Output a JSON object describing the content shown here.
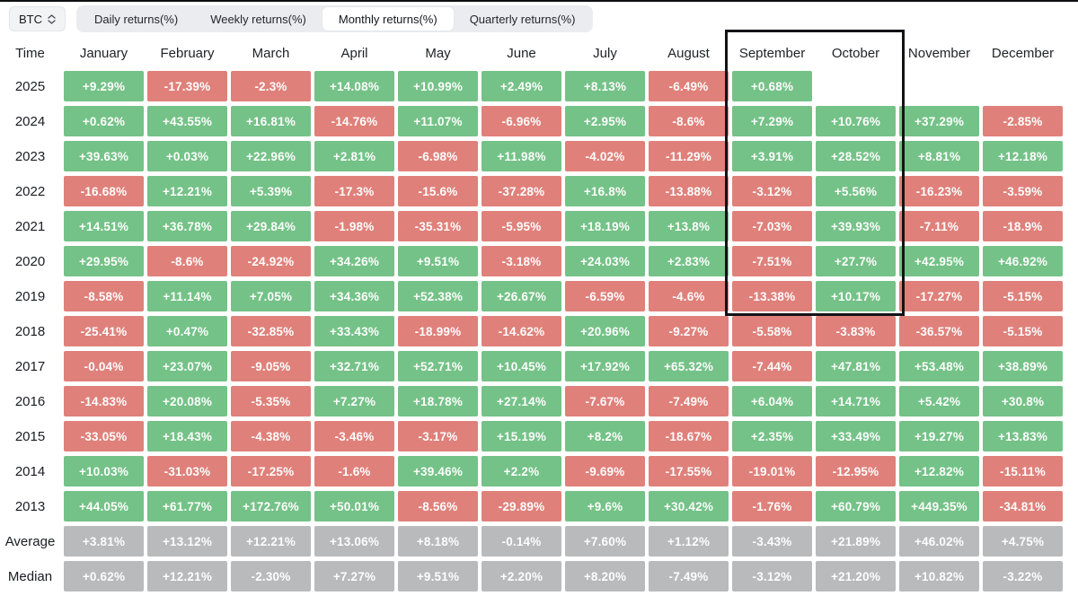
{
  "toolbar": {
    "coin": "BTC",
    "tabs": [
      {
        "label": "Daily returns(%)",
        "active": false
      },
      {
        "label": "Weekly returns(%)",
        "active": false
      },
      {
        "label": "Monthly returns(%)",
        "active": true
      },
      {
        "label": "Quarterly returns(%)",
        "active": false
      }
    ]
  },
  "table": {
    "time_label": "Time",
    "months": [
      "January",
      "February",
      "March",
      "April",
      "May",
      "June",
      "July",
      "August",
      "September",
      "October",
      "November",
      "December"
    ],
    "rows": [
      {
        "label": "2025",
        "type": "year",
        "values": [
          "+9.29%",
          "-17.39%",
          "-2.3%",
          "+14.08%",
          "+10.99%",
          "+2.49%",
          "+8.13%",
          "-6.49%",
          "+0.68%",
          "",
          "",
          ""
        ]
      },
      {
        "label": "2024",
        "type": "year",
        "values": [
          "+0.62%",
          "+43.55%",
          "+16.81%",
          "-14.76%",
          "+11.07%",
          "-6.96%",
          "+2.95%",
          "-8.6%",
          "+7.29%",
          "+10.76%",
          "+37.29%",
          "-2.85%"
        ]
      },
      {
        "label": "2023",
        "type": "year",
        "values": [
          "+39.63%",
          "+0.03%",
          "+22.96%",
          "+2.81%",
          "-6.98%",
          "+11.98%",
          "-4.02%",
          "-11.29%",
          "+3.91%",
          "+28.52%",
          "+8.81%",
          "+12.18%"
        ]
      },
      {
        "label": "2022",
        "type": "year",
        "values": [
          "-16.68%",
          "+12.21%",
          "+5.39%",
          "-17.3%",
          "-15.6%",
          "-37.28%",
          "+16.8%",
          "-13.88%",
          "-3.12%",
          "+5.56%",
          "-16.23%",
          "-3.59%"
        ]
      },
      {
        "label": "2021",
        "type": "year",
        "values": [
          "+14.51%",
          "+36.78%",
          "+29.84%",
          "-1.98%",
          "-35.31%",
          "-5.95%",
          "+18.19%",
          "+13.8%",
          "-7.03%",
          "+39.93%",
          "-7.11%",
          "-18.9%"
        ]
      },
      {
        "label": "2020",
        "type": "year",
        "values": [
          "+29.95%",
          "-8.6%",
          "-24.92%",
          "+34.26%",
          "+9.51%",
          "-3.18%",
          "+24.03%",
          "+2.83%",
          "-7.51%",
          "+27.7%",
          "+42.95%",
          "+46.92%"
        ]
      },
      {
        "label": "2019",
        "type": "year",
        "values": [
          "-8.58%",
          "+11.14%",
          "+7.05%",
          "+34.36%",
          "+52.38%",
          "+26.67%",
          "-6.59%",
          "-4.6%",
          "-13.38%",
          "+10.17%",
          "-17.27%",
          "-5.15%"
        ]
      },
      {
        "label": "2018",
        "type": "year",
        "values": [
          "-25.41%",
          "+0.47%",
          "-32.85%",
          "+33.43%",
          "-18.99%",
          "-14.62%",
          "+20.96%",
          "-9.27%",
          "-5.58%",
          "-3.83%",
          "-36.57%",
          "-5.15%"
        ]
      },
      {
        "label": "2017",
        "type": "year",
        "values": [
          "-0.04%",
          "+23.07%",
          "-9.05%",
          "+32.71%",
          "+52.71%",
          "+10.45%",
          "+17.92%",
          "+65.32%",
          "-7.44%",
          "+47.81%",
          "+53.48%",
          "+38.89%"
        ]
      },
      {
        "label": "2016",
        "type": "year",
        "values": [
          "-14.83%",
          "+20.08%",
          "-5.35%",
          "+7.27%",
          "+18.78%",
          "+27.14%",
          "-7.67%",
          "-7.49%",
          "+6.04%",
          "+14.71%",
          "+5.42%",
          "+30.8%"
        ]
      },
      {
        "label": "2015",
        "type": "year",
        "values": [
          "-33.05%",
          "+18.43%",
          "-4.38%",
          "-3.46%",
          "-3.17%",
          "+15.19%",
          "+8.2%",
          "-18.67%",
          "+2.35%",
          "+33.49%",
          "+19.27%",
          "+13.83%"
        ]
      },
      {
        "label": "2014",
        "type": "year",
        "values": [
          "+10.03%",
          "-31.03%",
          "-17.25%",
          "-1.6%",
          "+39.46%",
          "+2.2%",
          "-9.69%",
          "-17.55%",
          "-19.01%",
          "-12.95%",
          "+12.82%",
          "-15.11%"
        ]
      },
      {
        "label": "2013",
        "type": "year",
        "values": [
          "+44.05%",
          "+61.77%",
          "+172.76%",
          "+50.01%",
          "-8.56%",
          "-29.89%",
          "+9.6%",
          "+30.42%",
          "-1.76%",
          "+60.79%",
          "+449.35%",
          "-34.81%"
        ]
      },
      {
        "label": "Average",
        "type": "summary",
        "values": [
          "+3.81%",
          "+13.12%",
          "+12.21%",
          "+13.06%",
          "+8.18%",
          "-0.14%",
          "+7.60%",
          "+1.12%",
          "-3.43%",
          "+21.89%",
          "+46.02%",
          "+4.75%"
        ]
      },
      {
        "label": "Median",
        "type": "summary",
        "values": [
          "+0.62%",
          "+12.21%",
          "-2.30%",
          "+7.27%",
          "+9.51%",
          "+2.20%",
          "+8.20%",
          "-7.49%",
          "-3.12%",
          "+21.20%",
          "+10.82%",
          "-3.22%"
        ]
      }
    ]
  },
  "annotation": {
    "type": "rectangle",
    "highlighted_months": [
      "September",
      "October"
    ],
    "border_color": "#121316"
  },
  "colors": {
    "positive": "#74c287",
    "negative": "#e0807a",
    "summary": "#b9babc"
  }
}
